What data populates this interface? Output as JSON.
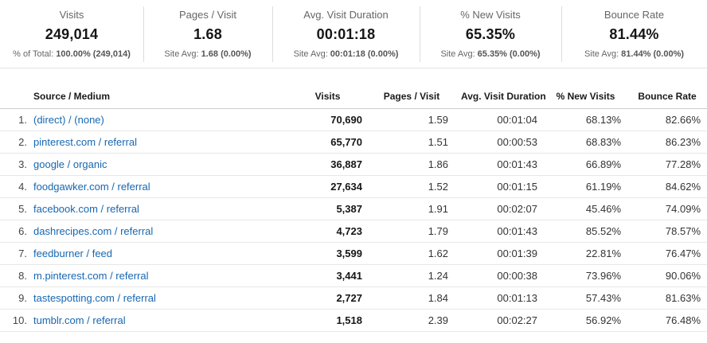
{
  "summary_cards": [
    {
      "label": "Visits",
      "value": "249,014",
      "sub_prefix": "% of Total:",
      "sub_value": "100.00% (249,014)"
    },
    {
      "label": "Pages / Visit",
      "value": "1.68",
      "sub_prefix": "Site Avg:",
      "sub_value": "1.68 (0.00%)"
    },
    {
      "label": "Avg. Visit Duration",
      "value": "00:01:18",
      "sub_prefix": "Site Avg:",
      "sub_value": "00:01:18 (0.00%)"
    },
    {
      "label": "% New Visits",
      "value": "65.35%",
      "sub_prefix": "Site Avg:",
      "sub_value": "65.35% (0.00%)"
    },
    {
      "label": "Bounce Rate",
      "value": "81.44%",
      "sub_prefix": "Site Avg:",
      "sub_value": "81.44% (0.00%)"
    }
  ],
  "table": {
    "columns": [
      "Source / Medium",
      "Visits",
      "Pages / Visit",
      "Avg. Visit Duration",
      "% New Visits",
      "Bounce Rate"
    ],
    "rows": [
      {
        "rank": "1.",
        "source": "(direct) / (none)",
        "visits": "70,690",
        "pages": "1.59",
        "duration": "00:01:04",
        "new_visits": "68.13%",
        "bounce": "82.66%"
      },
      {
        "rank": "2.",
        "source": "pinterest.com / referral",
        "visits": "65,770",
        "pages": "1.51",
        "duration": "00:00:53",
        "new_visits": "68.83%",
        "bounce": "86.23%"
      },
      {
        "rank": "3.",
        "source": "google / organic",
        "visits": "36,887",
        "pages": "1.86",
        "duration": "00:01:43",
        "new_visits": "66.89%",
        "bounce": "77.28%"
      },
      {
        "rank": "4.",
        "source": "foodgawker.com / referral",
        "visits": "27,634",
        "pages": "1.52",
        "duration": "00:01:15",
        "new_visits": "61.19%",
        "bounce": "84.62%"
      },
      {
        "rank": "5.",
        "source": "facebook.com / referral",
        "visits": "5,387",
        "pages": "1.91",
        "duration": "00:02:07",
        "new_visits": "45.46%",
        "bounce": "74.09%"
      },
      {
        "rank": "6.",
        "source": "dashrecipes.com / referral",
        "visits": "4,723",
        "pages": "1.79",
        "duration": "00:01:43",
        "new_visits": "85.52%",
        "bounce": "78.57%"
      },
      {
        "rank": "7.",
        "source": "feedburner / feed",
        "visits": "3,599",
        "pages": "1.62",
        "duration": "00:01:39",
        "new_visits": "22.81%",
        "bounce": "76.47%"
      },
      {
        "rank": "8.",
        "source": "m.pinterest.com / referral",
        "visits": "3,441",
        "pages": "1.24",
        "duration": "00:00:38",
        "new_visits": "73.96%",
        "bounce": "90.06%"
      },
      {
        "rank": "9.",
        "source": "tastespotting.com / referral",
        "visits": "2,727",
        "pages": "1.84",
        "duration": "00:01:13",
        "new_visits": "57.43%",
        "bounce": "81.63%"
      },
      {
        "rank": "10.",
        "source": "tumblr.com / referral",
        "visits": "1,518",
        "pages": "2.39",
        "duration": "00:02:27",
        "new_visits": "56.92%",
        "bounce": "76.48%"
      }
    ]
  },
  "colors": {
    "link_blue": "#1767b2",
    "value_text": "#151515",
    "muted_text": "#666666",
    "row_divider": "#e7e7e7",
    "header_divider": "#cccccc"
  }
}
